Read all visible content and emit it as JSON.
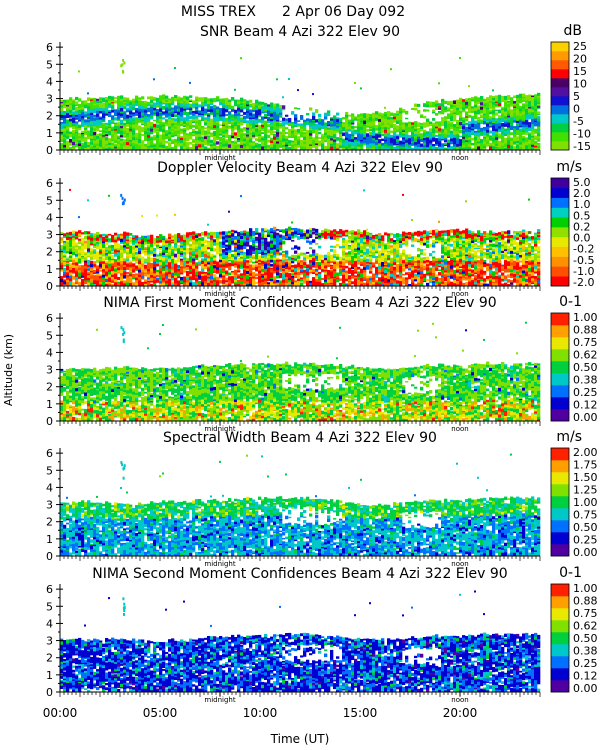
{
  "header": {
    "campaign": "MISS TREX",
    "date": "2 Apr 06 Day 092"
  },
  "shared_axes": {
    "ylabel": "Altitude (km)",
    "xlabel": "Time (UT)",
    "xticks": [
      "00:00",
      "05:00",
      "10:00",
      "15:00",
      "20:00"
    ],
    "xrange": [
      0,
      24
    ],
    "marker_labels": [
      "midnight",
      "noon"
    ],
    "marker_times": [
      8,
      20
    ],
    "yticks": [
      "0",
      "1",
      "2",
      "3",
      "4",
      "5",
      "6"
    ],
    "yrange": [
      0,
      6.3
    ]
  },
  "chart_data": [
    {
      "type": "heatmap",
      "title": "SNR Beam 4 Azi 322 Elev 90",
      "colorbar_unit": "dB",
      "colorbar_ticks": [
        "-15",
        "-10",
        "-5",
        "0",
        "5",
        "10",
        "15",
        "20",
        "25"
      ],
      "colors": [
        "#80e000",
        "#40e000",
        "#00d040",
        "#00c8c8",
        "#0070e0",
        "#1010d0",
        "#5010a0",
        "#4b0066",
        "#ff0000",
        "#ff5a00",
        "#ff9a00",
        "#ffd000"
      ],
      "band_top_km": [
        2.9,
        2.95,
        3.0,
        3.1,
        3.0,
        3.05,
        3.1,
        3.0,
        2.95,
        2.9,
        2.7,
        2.5,
        2.4,
        2.3,
        2.0,
        2.1,
        2.2,
        2.6,
        2.8,
        2.9,
        3.0,
        3.1,
        3.2,
        3.2
      ],
      "dominant": "green-cyan with blue layer at 1-2.5 km"
    },
    {
      "type": "heatmap",
      "title": "Doppler Velocity Beam 4 Azi 322 Elev 90",
      "colorbar_unit": "m/s",
      "colorbar_ticks": [
        "-2.0",
        "-1.0",
        "-0.5",
        "-0.2",
        "0.0",
        "0.2",
        "0.5",
        "1.0",
        "2.0",
        "5.0"
      ],
      "colors": [
        "#ff0000",
        "#ff5000",
        "#ff9000",
        "#ffc000",
        "#e8e800",
        "#90e000",
        "#00d000",
        "#00d0c0",
        "#0070ff",
        "#0000d0",
        "#4000a0"
      ],
      "band_top_km": [
        3.1,
        3.1,
        3.0,
        3.0,
        2.9,
        2.9,
        3.0,
        3.1,
        3.2,
        3.2,
        3.3,
        3.3,
        3.3,
        3.2,
        3.2,
        3.0,
        3.0,
        3.1,
        3.2,
        3.2,
        3.1,
        3.1,
        3.2,
        3.2
      ],
      "dominant": "mixed red/orange near surface, blue patches aloft"
    },
    {
      "type": "heatmap",
      "title": "NIMA First Moment Confidences Beam 4 Azi 322 Elev 90",
      "colorbar_unit": "0-1",
      "colorbar_ticks": [
        "0.00",
        "0.12",
        "0.25",
        "0.38",
        "0.50",
        "0.62",
        "0.75",
        "0.88",
        "1.00"
      ],
      "colors": [
        "#5000a0",
        "#0000d0",
        "#0070ff",
        "#00c8c8",
        "#00d040",
        "#80e000",
        "#e8e800",
        "#ffa000",
        "#ff2000"
      ],
      "band_top_km": [
        3.0,
        3.0,
        3.0,
        3.1,
        3.0,
        3.0,
        3.1,
        3.2,
        3.2,
        3.3,
        3.3,
        3.3,
        3.3,
        3.2,
        3.1,
        3.0,
        3.0,
        3.1,
        3.2,
        3.2,
        3.3,
        3.3,
        3.3,
        3.3
      ],
      "dominant": "green with yellow/orange near surface"
    },
    {
      "type": "heatmap",
      "title": "Spectral Width Beam 4 Azi 322 Elev 90",
      "colorbar_unit": "m/s",
      "colorbar_ticks": [
        "0.00",
        "0.25",
        "0.50",
        "0.75",
        "1.00",
        "1.25",
        "1.50",
        "1.75",
        "2.00"
      ],
      "colors": [
        "#5000a0",
        "#0000d0",
        "#0070ff",
        "#00c8c8",
        "#00d040",
        "#80e000",
        "#e8e800",
        "#ffa000",
        "#ff2000"
      ],
      "band_top_km": [
        3.1,
        3.1,
        3.1,
        3.0,
        3.0,
        3.1,
        3.1,
        3.2,
        3.2,
        3.3,
        3.3,
        3.3,
        3.3,
        3.2,
        3.0,
        2.9,
        3.0,
        3.1,
        3.2,
        3.2,
        3.3,
        3.3,
        3.3,
        3.3
      ],
      "dominant": "cyan/blue with green above 2.5 km"
    },
    {
      "type": "heatmap",
      "title": "NIMA Second Moment Confidences Beam 4 Azi 322 Elev 90",
      "colorbar_unit": "0-1",
      "colorbar_ticks": [
        "0.00",
        "0.12",
        "0.25",
        "0.38",
        "0.50",
        "0.62",
        "0.75",
        "0.88",
        "1.00"
      ],
      "colors": [
        "#5000a0",
        "#0000d0",
        "#0070ff",
        "#00c8c8",
        "#00d040",
        "#80e000",
        "#e8e800",
        "#ffa000",
        "#ff2000"
      ],
      "band_top_km": [
        3.0,
        3.0,
        3.0,
        3.0,
        2.9,
        2.9,
        3.0,
        3.1,
        3.2,
        3.2,
        3.3,
        3.3,
        3.3,
        3.2,
        3.1,
        3.0,
        3.0,
        3.1,
        3.2,
        3.2,
        3.3,
        3.3,
        3.3,
        3.3
      ],
      "dominant": "blue with cyan speckle"
    }
  ]
}
